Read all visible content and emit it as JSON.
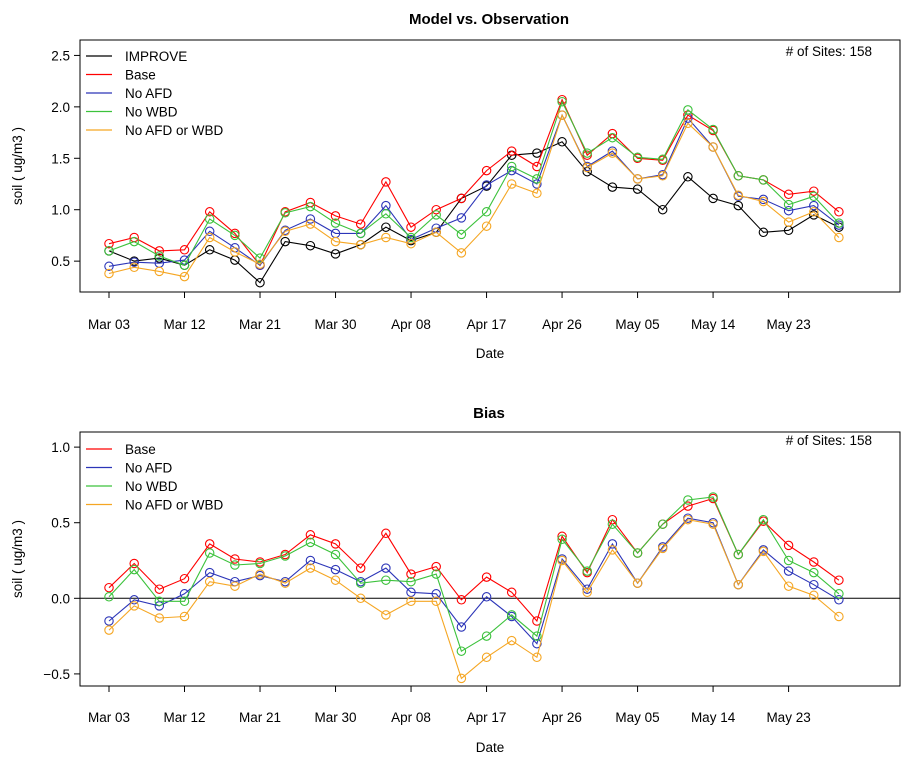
{
  "colors": {
    "IMPROVE": "#000000",
    "Base": "#ff0000",
    "No AFD": "#2c35b8",
    "No WBD": "#3cc23c",
    "No AFD or WBD": "#f5a623",
    "zero_line": "#000000"
  },
  "chart_data": [
    {
      "type": "line",
      "title": "Model vs. Observation",
      "xlabel": "Date",
      "ylabel": "soil ( ug/m3 )",
      "annotation": "# of Sites: 158",
      "legend_position": "top-left",
      "grid": false,
      "marker": "open-circle",
      "xlim": [
        0,
        30.5
      ],
      "ylim": [
        0.2,
        2.65
      ],
      "xticks": [
        {
          "x": 0,
          "label": "Mar 03"
        },
        {
          "x": 3,
          "label": "Mar 12"
        },
        {
          "x": 6,
          "label": "Mar 21"
        },
        {
          "x": 9,
          "label": "Mar 30"
        },
        {
          "x": 12,
          "label": "Apr 08"
        },
        {
          "x": 15,
          "label": "Apr 17"
        },
        {
          "x": 18,
          "label": "Apr 26"
        },
        {
          "x": 21,
          "label": "May 05"
        },
        {
          "x": 24,
          "label": "May 14"
        },
        {
          "x": 27,
          "label": "May 23"
        }
      ],
      "yticks": [
        0.5,
        1.0,
        1.5,
        2.0,
        2.5
      ],
      "ytick_labels": [
        "0.5",
        "1.0",
        "1.5",
        "2.0",
        "2.5"
      ],
      "series": [
        {
          "name": "IMPROVE",
          "values": [
            0.6,
            0.5,
            0.53,
            0.46,
            0.61,
            0.51,
            0.29,
            0.69,
            0.65,
            0.57,
            0.66,
            0.83,
            0.7,
            0.78,
            1.11,
            1.23,
            1.53,
            1.55,
            1.66,
            1.37,
            1.22,
            1.2,
            1.0,
            1.32,
            1.11,
            1.04,
            0.78,
            0.8,
            0.95,
            0.83
          ]
        },
        {
          "name": "Base",
          "values": [
            0.67,
            0.73,
            0.6,
            0.61,
            0.98,
            0.77,
            0.46,
            0.98,
            1.07,
            0.94,
            0.86,
            1.27,
            0.83,
            1.0,
            1.11,
            1.38,
            1.57,
            1.42,
            2.07,
            1.53,
            1.74,
            1.5,
            1.48,
            1.92,
            1.77,
            1.33,
            1.29,
            1.15,
            1.18,
            0.98
          ]
        },
        {
          "name": "No AFD",
          "values": [
            0.45,
            0.49,
            0.48,
            0.51,
            0.79,
            0.63,
            0.46,
            0.8,
            0.91,
            0.77,
            0.77,
            1.04,
            0.71,
            0.82,
            0.92,
            1.24,
            1.38,
            1.25,
            1.92,
            1.42,
            1.57,
            1.3,
            1.34,
            1.89,
            1.61,
            1.13,
            1.1,
            0.99,
            1.04,
            0.85
          ]
        },
        {
          "name": "No WBD",
          "values": [
            0.6,
            0.69,
            0.55,
            0.46,
            0.91,
            0.75,
            0.53,
            0.97,
            1.03,
            0.87,
            0.77,
            0.96,
            0.73,
            0.95,
            0.76,
            0.98,
            1.42,
            1.3,
            2.05,
            1.55,
            1.7,
            1.51,
            1.49,
            1.97,
            1.78,
            1.33,
            1.29,
            1.05,
            1.13,
            0.87
          ]
        },
        {
          "name": "No AFD or WBD",
          "values": [
            0.38,
            0.44,
            0.4,
            0.35,
            0.73,
            0.59,
            0.47,
            0.79,
            0.86,
            0.69,
            0.66,
            0.73,
            0.67,
            0.78,
            0.58,
            0.84,
            1.25,
            1.16,
            1.92,
            1.41,
            1.55,
            1.3,
            1.33,
            1.84,
            1.61,
            1.14,
            1.08,
            0.88,
            0.98,
            0.73
          ]
        }
      ]
    },
    {
      "type": "line",
      "title": "Bias",
      "xlabel": "Date",
      "ylabel": "soil ( ug/m3 )",
      "annotation": "# of Sites: 158",
      "legend_position": "top-left",
      "grid": false,
      "marker": "open-circle",
      "reference_line": 0,
      "xlim": [
        0,
        30.5
      ],
      "ylim": [
        -0.58,
        1.1
      ],
      "xticks": [
        {
          "x": 0,
          "label": "Mar 03"
        },
        {
          "x": 3,
          "label": "Mar 12"
        },
        {
          "x": 6,
          "label": "Mar 21"
        },
        {
          "x": 9,
          "label": "Mar 30"
        },
        {
          "x": 12,
          "label": "Apr 08"
        },
        {
          "x": 15,
          "label": "Apr 17"
        },
        {
          "x": 18,
          "label": "Apr 26"
        },
        {
          "x": 21,
          "label": "May 05"
        },
        {
          "x": 24,
          "label": "May 14"
        },
        {
          "x": 27,
          "label": "May 23"
        }
      ],
      "yticks": [
        -0.5,
        0.0,
        0.5,
        1.0
      ],
      "ytick_labels": [
        "−0.5",
        "0.0",
        "0.5",
        "1.0"
      ],
      "series": [
        {
          "name": "Base",
          "values": [
            0.07,
            0.23,
            0.06,
            0.13,
            0.36,
            0.26,
            0.24,
            0.29,
            0.42,
            0.36,
            0.2,
            0.43,
            0.16,
            0.21,
            -0.01,
            0.14,
            0.04,
            -0.15,
            0.41,
            0.17,
            0.52,
            0.3,
            0.49,
            0.61,
            0.66,
            0.29,
            0.51,
            0.35,
            0.24,
            0.12
          ]
        },
        {
          "name": "No AFD",
          "values": [
            -0.15,
            -0.01,
            -0.05,
            0.03,
            0.17,
            0.11,
            0.15,
            0.11,
            0.25,
            0.19,
            0.11,
            0.2,
            0.04,
            0.03,
            -0.19,
            0.01,
            -0.12,
            -0.3,
            0.26,
            0.06,
            0.36,
            0.1,
            0.34,
            0.53,
            0.5,
            0.09,
            0.32,
            0.18,
            0.09,
            -0.01
          ]
        },
        {
          "name": "No WBD",
          "values": [
            0.01,
            0.19,
            -0.02,
            -0.02,
            0.3,
            0.22,
            0.23,
            0.28,
            0.37,
            0.29,
            0.1,
            0.12,
            0.11,
            0.16,
            -0.35,
            -0.25,
            -0.11,
            -0.25,
            0.39,
            0.18,
            0.49,
            0.3,
            0.49,
            0.65,
            0.67,
            0.29,
            0.52,
            0.25,
            0.17,
            0.03
          ]
        },
        {
          "name": "No AFD or WBD",
          "values": [
            -0.21,
            -0.05,
            -0.13,
            -0.12,
            0.11,
            0.08,
            0.16,
            0.1,
            0.2,
            0.12,
            0.0,
            -0.11,
            -0.02,
            -0.02,
            -0.53,
            -0.39,
            -0.28,
            -0.39,
            0.25,
            0.04,
            0.32,
            0.1,
            0.33,
            0.52,
            0.49,
            0.09,
            0.31,
            0.08,
            0.02,
            -0.12
          ]
        }
      ]
    }
  ]
}
